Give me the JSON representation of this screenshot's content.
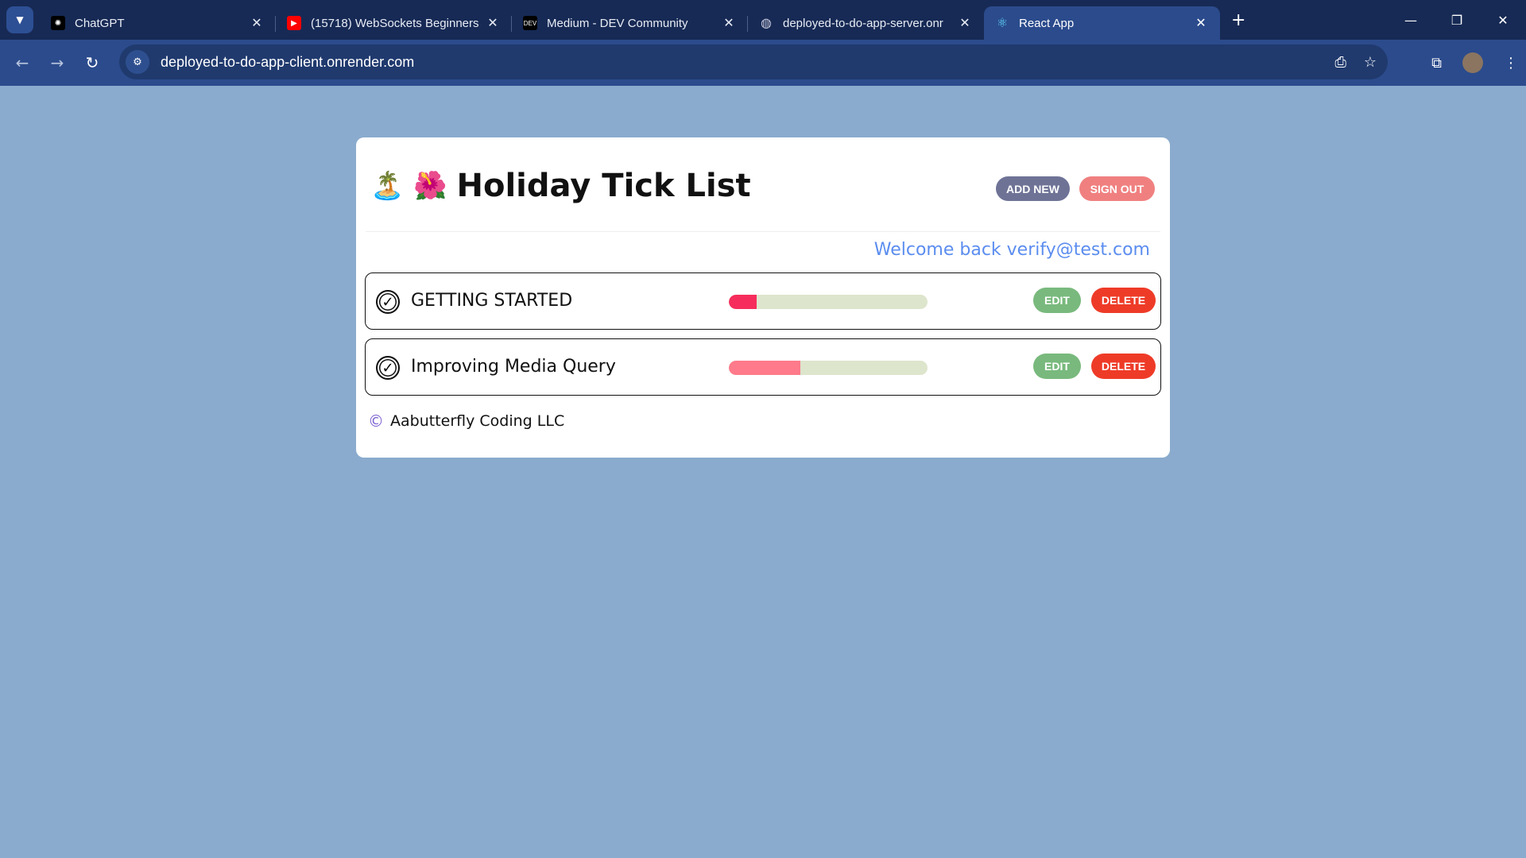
{
  "browser": {
    "tabs": [
      {
        "title": "ChatGPT",
        "icon": "chatgpt-icon"
      },
      {
        "title": "(15718) WebSockets Beginners",
        "icon": "youtube-icon"
      },
      {
        "title": "Medium - DEV Community",
        "icon": "dev-icon",
        "badge": "DEV"
      },
      {
        "title": "deployed-to-do-app-server.onr",
        "icon": "globe-icon"
      },
      {
        "title": "React App",
        "icon": "react-icon",
        "active": true
      }
    ],
    "url": "deployed-to-do-app-client.onrender.com"
  },
  "app": {
    "emojis": "🏝️ 🌺",
    "title": "Holiday Tick List",
    "add_new": "ADD NEW",
    "sign_out": "SIGN OUT",
    "welcome": "Welcome back verify@test.com",
    "tasks": [
      {
        "title": "GETTING STARTED",
        "progress": 14,
        "color": "#f62d5c",
        "edit": "EDIT",
        "delete": "DELETE"
      },
      {
        "title": "Improving Media Query",
        "progress": 36,
        "color": "#ff7a8a",
        "edit": "EDIT",
        "delete": "DELETE"
      }
    ],
    "footer_symbol": "©",
    "footer": "Aabutterfly Coding LLC"
  },
  "colors": {
    "background": "#8aabcd",
    "add_new": "#6e7396",
    "sign_out": "#f08080",
    "edit": "#79b97d",
    "delete": "#ee3b28",
    "welcome": "#5b8def"
  }
}
